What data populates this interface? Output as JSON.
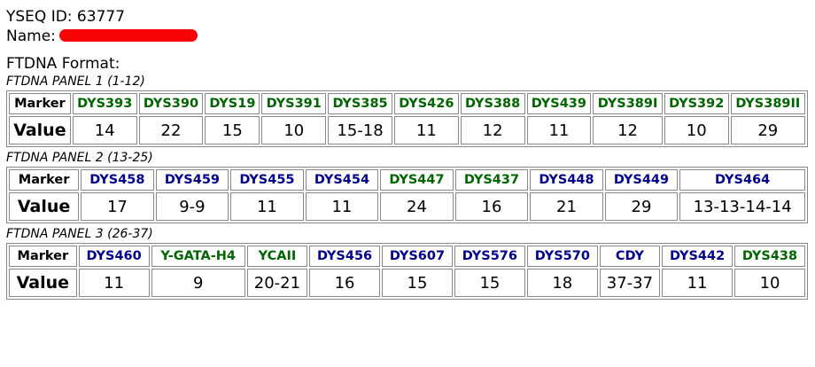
{
  "header": {
    "yseq_id": "YSEQ ID: 63777",
    "name": "Name:",
    "format": "FTDNA Format:"
  },
  "panels": [
    {
      "title": "FTDNA PANEL 1 (1-12)",
      "marker_label": "Marker",
      "value_label": "Value",
      "markers": [
        {
          "name": "DYS393",
          "color": "#006400"
        },
        {
          "name": "DYS390",
          "color": "#006400"
        },
        {
          "name": "DYS19",
          "color": "#006400"
        },
        {
          "name": "DYS391",
          "color": "#006400"
        },
        {
          "name": "DYS385",
          "color": "#006400"
        },
        {
          "name": "DYS426",
          "color": "#006400"
        },
        {
          "name": "DYS388",
          "color": "#006400"
        },
        {
          "name": "DYS439",
          "color": "#006400"
        },
        {
          "name": "DYS389I",
          "color": "#006400"
        },
        {
          "name": "DYS392",
          "color": "#006400"
        },
        {
          "name": "DYS389II",
          "color": "#006400"
        }
      ],
      "values": [
        "14",
        "22",
        "15",
        "10",
        "15-18",
        "11",
        "12",
        "11",
        "12",
        "10",
        "29"
      ]
    },
    {
      "title": "FTDNA PANEL 2 (13-25)",
      "marker_label": "Marker",
      "value_label": "Value",
      "markers": [
        {
          "name": "DYS458",
          "color": "#00008b"
        },
        {
          "name": "DYS459",
          "color": "#00008b"
        },
        {
          "name": "DYS455",
          "color": "#00008b"
        },
        {
          "name": "DYS454",
          "color": "#00008b"
        },
        {
          "name": "DYS447",
          "color": "#006400"
        },
        {
          "name": "DYS437",
          "color": "#006400"
        },
        {
          "name": "DYS448",
          "color": "#00008b"
        },
        {
          "name": "DYS449",
          "color": "#00008b"
        },
        {
          "name": "DYS464",
          "color": "#00008b"
        }
      ],
      "values": [
        "17",
        "9-9",
        "11",
        "11",
        "24",
        "16",
        "21",
        "29",
        "13-13-14-14"
      ]
    },
    {
      "title": "FTDNA PANEL 3 (26-37)",
      "marker_label": "Marker",
      "value_label": "Value",
      "markers": [
        {
          "name": "DYS460",
          "color": "#00008b"
        },
        {
          "name": "Y-GATA-H4",
          "color": "#006400"
        },
        {
          "name": "YCAII",
          "color": "#006400"
        },
        {
          "name": "DYS456",
          "color": "#00008b"
        },
        {
          "name": "DYS607",
          "color": "#00008b"
        },
        {
          "name": "DYS576",
          "color": "#00008b"
        },
        {
          "name": "DYS570",
          "color": "#00008b"
        },
        {
          "name": "CDY",
          "color": "#00008b"
        },
        {
          "name": "DYS442",
          "color": "#00008b"
        },
        {
          "name": "DYS438",
          "color": "#006400"
        }
      ],
      "values": [
        "11",
        "9",
        "20-21",
        "16",
        "15",
        "15",
        "18",
        "37-37",
        "11",
        "10"
      ]
    }
  ]
}
